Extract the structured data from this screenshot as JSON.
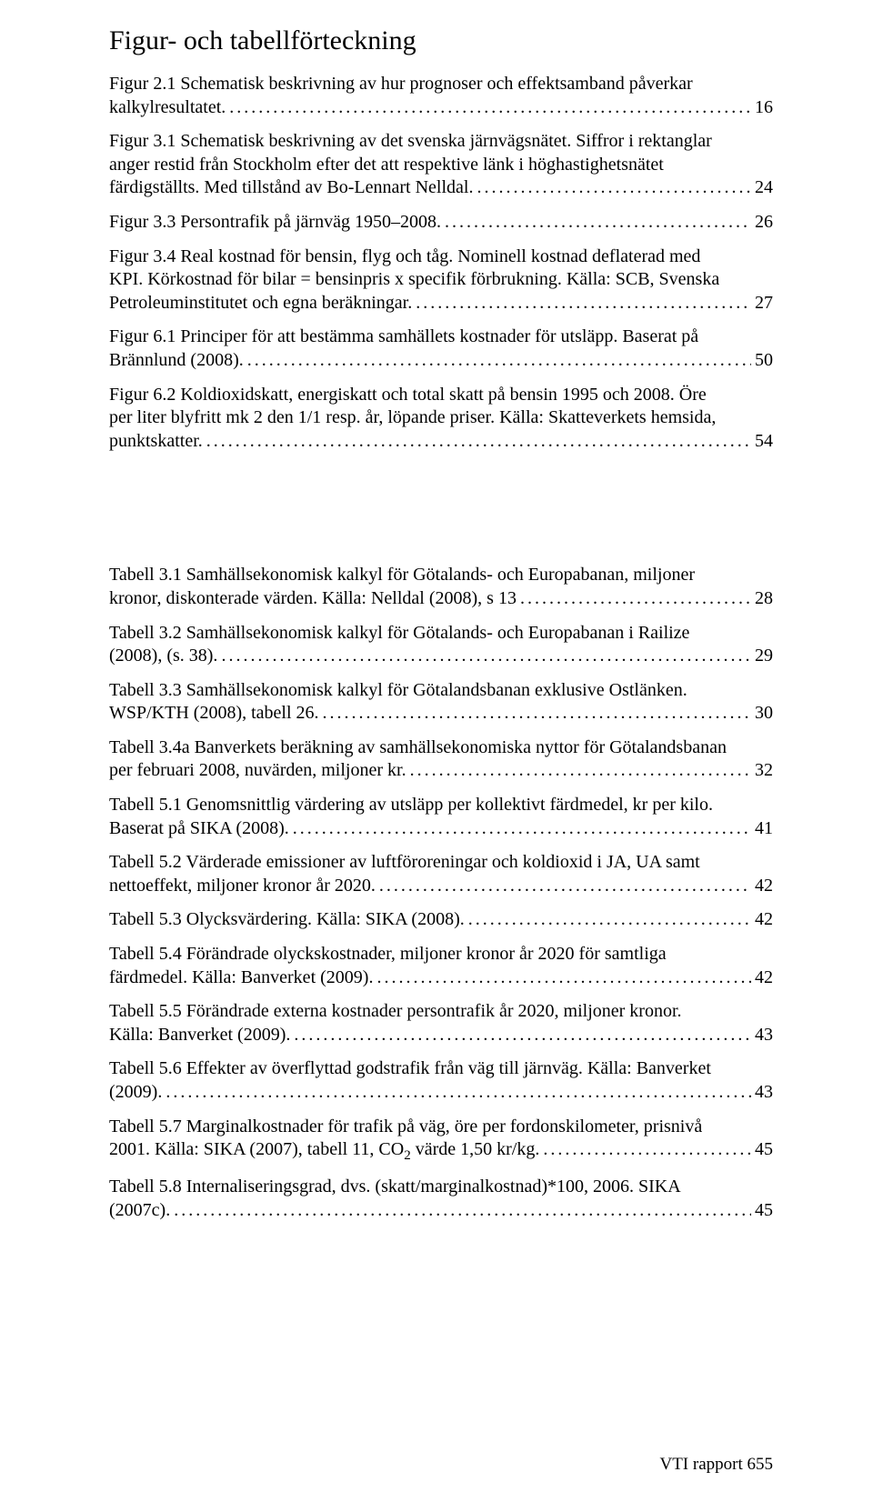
{
  "heading": "Figur- och tabellförteckning",
  "figures": [
    {
      "lines": [
        "Figur 2.1  Schematisk beskrivning av hur prognoser och effektsamband påverkar",
        "kalkylresultatet."
      ],
      "page": "16"
    },
    {
      "lines": [
        "Figur 3.1  Schematisk beskrivning av det svenska järnvägsnätet. Siffror i rektanglar",
        "anger restid från Stockholm efter det att respektive länk i höghastighetsnätet",
        "färdigställts. Med tillstånd av Bo-Lennart Nelldal."
      ],
      "page": "24"
    },
    {
      "lines": [
        "Figur 3.3  Persontrafik på järnväg 1950–2008."
      ],
      "page": "26"
    },
    {
      "lines": [
        "Figur 3.4  Real kostnad för bensin, flyg och tåg. Nominell kostnad deflaterad med",
        "KPI. Körkostnad för bilar = bensinpris x specifik förbrukning. Källa: SCB, Svenska",
        "Petroleuminstitutet och egna beräkningar. "
      ],
      "page": "27"
    },
    {
      "lines": [
        "Figur 6.1  Principer för att bestämma samhällets kostnader för utsläpp. Baserat på",
        "Brännlund (2008)."
      ],
      "page": "50"
    },
    {
      "lines": [
        "Figur 6.2  Koldioxidskatt, energiskatt och total skatt på bensin 1995 och 2008. Öre",
        "per liter blyfritt mk 2 den 1/1 resp. år, löpande priser. Källa: Skatteverkets hemsida,",
        "punktskatter."
      ],
      "page": "54"
    }
  ],
  "tables": [
    {
      "lines": [
        "Tabell 3.1  Samhällsekonomisk kalkyl för Götalands- och Europabanan, miljoner",
        "kronor, diskonterade värden. Källa: Nelldal (2008), s 13"
      ],
      "page": "28"
    },
    {
      "lines": [
        "Tabell 3.2  Samhällsekonomisk kalkyl för Götalands- och Europabanan i Railize",
        "(2008), (s. 38). "
      ],
      "page": "29"
    },
    {
      "lines": [
        "Tabell 3.3  Samhällsekonomisk kalkyl för Götalandsbanan exklusive Ostlänken.",
        "WSP/KTH (2008), tabell 26. "
      ],
      "page": "30"
    },
    {
      "lines": [
        "Tabell 3.4a  Banverkets beräkning av samhällsekonomiska nyttor för Götalandsbanan",
        "per februari 2008, nuvärden, miljoner kr."
      ],
      "page": "32"
    },
    {
      "lines": [
        "Tabell 5.1  Genomsnittlig värdering av utsläpp per kollektivt färdmedel, kr per kilo.",
        "Baserat på SIKA (2008). "
      ],
      "page": "41"
    },
    {
      "lines": [
        "Tabell 5.2  Värderade emissioner av luftföroreningar och koldioxid i JA, UA samt",
        "nettoeffekt, miljoner kronor år 2020."
      ],
      "page": "42"
    },
    {
      "lines": [
        "Tabell 5.3  Olycksvärdering. Källa: SIKA (2008). "
      ],
      "page": "42"
    },
    {
      "lines": [
        "Tabell 5.4  Förändrade olyckskostnader, miljoner kronor  år 2020 för samtliga",
        "färdmedel. Källa: Banverket (2009). "
      ],
      "page": "42"
    },
    {
      "lines": [
        "Tabell 5.5  Förändrade externa kostnader persontrafik år 2020, miljoner kronor.",
        "Källa: Banverket (2009). "
      ],
      "page": "43"
    },
    {
      "lines": [
        "Tabell 5.6  Effekter av överflyttad godstrafik från väg till järnväg. Källa: Banverket",
        "(2009). "
      ],
      "page": "43"
    },
    {
      "lines": [
        "Tabell 5.7  Marginalkostnader för trafik på väg, öre per fordonskilometer, prisnivå",
        "2001. Källa: SIKA (2007), tabell 11, CO<sub>2</sub> värde 1,50 kr/kg. "
      ],
      "page": "45"
    },
    {
      "lines": [
        "Tabell 5.8  Internaliseringsgrad, dvs. (skatt/marginalkostnad)*100, 2006. SIKA",
        "(2007c). "
      ],
      "page": "45"
    }
  ],
  "footer": "VTI rapport 655"
}
